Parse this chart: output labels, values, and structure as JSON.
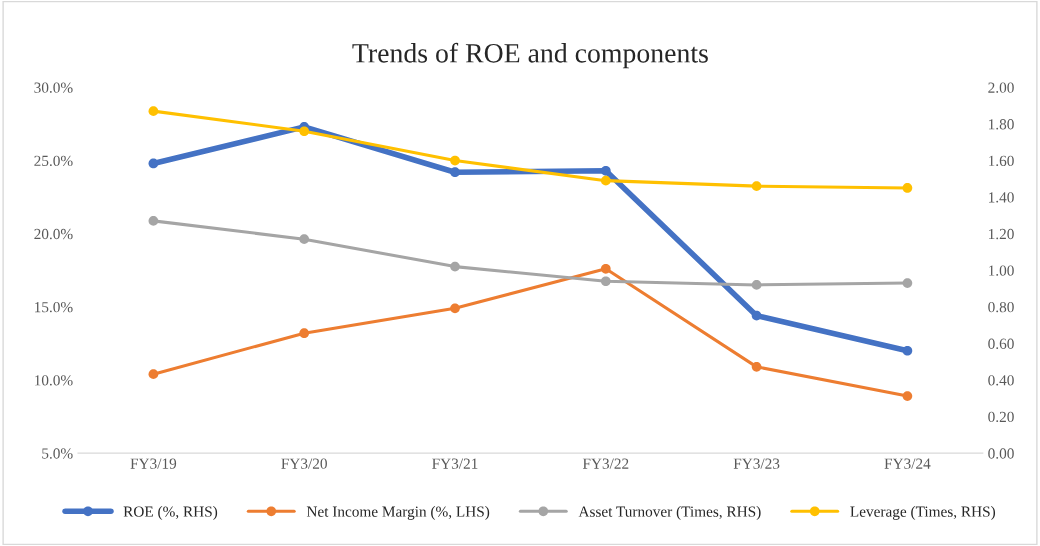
{
  "chart_data": {
    "type": "line",
    "title": "Trends of ROE and components",
    "categories": [
      "FY3/19",
      "FY3/20",
      "FY3/21",
      "FY3/22",
      "FY3/23",
      "FY3/24"
    ],
    "series": [
      {
        "name": "ROE (%, RHS)",
        "color": "#4472c4",
        "values": [
          24.8,
          27.3,
          24.2,
          24.3,
          14.4,
          12.0
        ]
      },
      {
        "name": "Net Income Margin (%, LHS)",
        "color": "#ed7d31",
        "values": [
          10.4,
          13.2,
          14.9,
          17.6,
          10.9,
          8.9
        ]
      },
      {
        "name": "Asset Turnover (Times, RHS)",
        "color": "#a5a5a5",
        "axis": "y2",
        "values": [
          1.27,
          1.17,
          1.02,
          0.94,
          0.92,
          0.93
        ]
      },
      {
        "name": "Leverage (Times, RHS)",
        "color": "#ffc000",
        "axis": "y2",
        "values": [
          1.87,
          1.76,
          1.6,
          1.49,
          1.46,
          1.45
        ]
      }
    ],
    "ylim": [
      5,
      30
    ],
    "yticks": [
      {
        "value": 5,
        "label": "5.0%"
      },
      {
        "value": 10,
        "label": "10.0%"
      },
      {
        "value": 15,
        "label": "15.0%"
      },
      {
        "value": 20,
        "label": "20.0%"
      },
      {
        "value": 25,
        "label": "25.0%"
      },
      {
        "value": 30,
        "label": "30.0%"
      }
    ],
    "y2lim": [
      0,
      2
    ],
    "y2ticks": [
      {
        "value": 0,
        "label": "0.00"
      },
      {
        "value": 0.2,
        "label": "0.20"
      },
      {
        "value": 0.4,
        "label": "0.40"
      },
      {
        "value": 0.6,
        "label": "0.60"
      },
      {
        "value": 0.8,
        "label": "0.80"
      },
      {
        "value": 1.0,
        "label": "1.00"
      },
      {
        "value": 1.2,
        "label": "1.20"
      },
      {
        "value": 1.4,
        "label": "1.40"
      },
      {
        "value": 1.6,
        "label": "1.60"
      },
      {
        "value": 1.8,
        "label": "1.80"
      },
      {
        "value": 2.0,
        "label": "2.00"
      }
    ],
    "marker": "circle",
    "legend": "bottom",
    "grid": false
  }
}
